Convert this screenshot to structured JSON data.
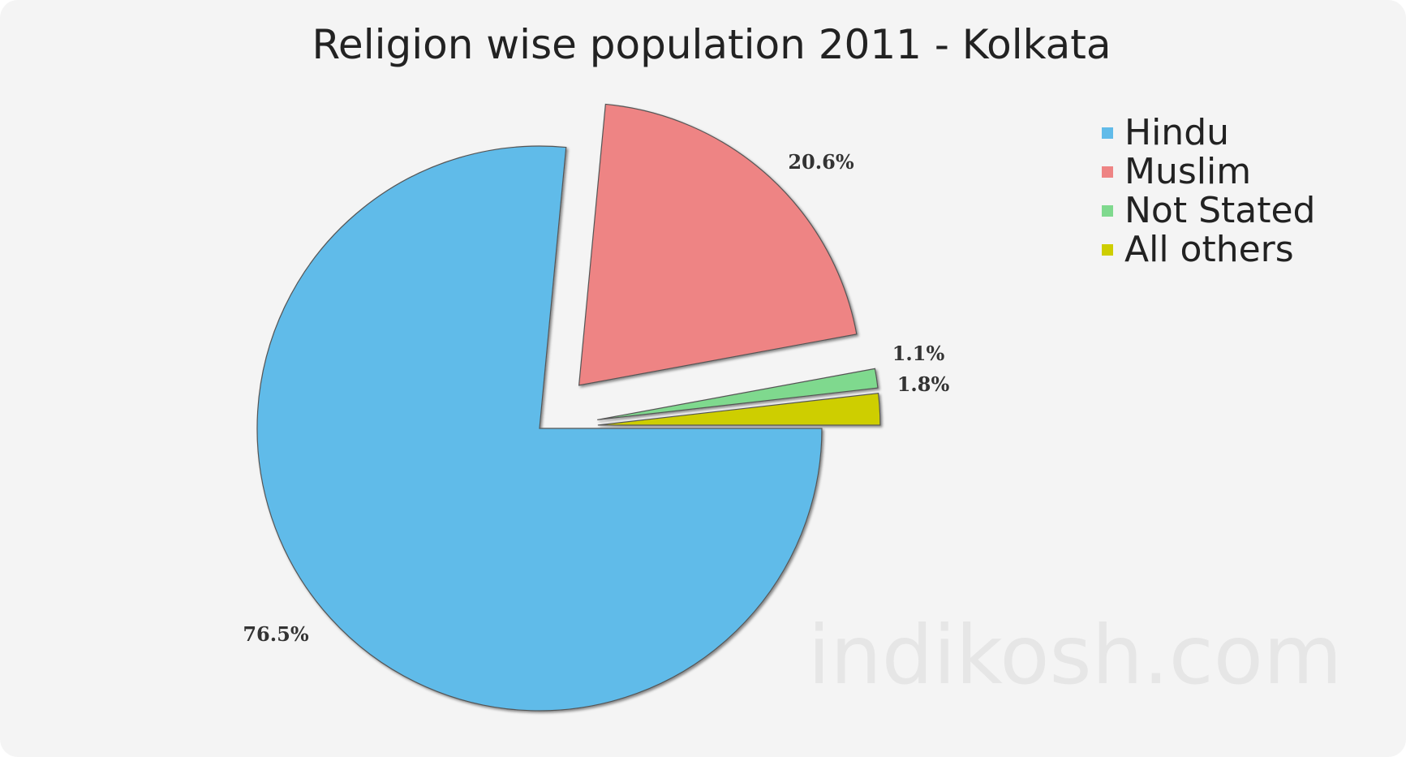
{
  "chart_data": {
    "type": "pie",
    "title": "Religion wise population 2011 - Kolkata",
    "categories": [
      "Hindu",
      "Muslim",
      "Not Stated",
      "All others"
    ],
    "values": [
      76.5,
      20.6,
      1.1,
      1.8
    ],
    "value_labels": [
      "76.5%",
      "20.6%",
      "1.1%",
      "1.8%"
    ],
    "colors": [
      "#61bbe9",
      "#ee8484",
      "#7fd98e",
      "#cece00"
    ],
    "exploded": [
      false,
      true,
      true,
      true
    ],
    "legend_position": "top-right"
  },
  "watermark": "indikosh.com"
}
